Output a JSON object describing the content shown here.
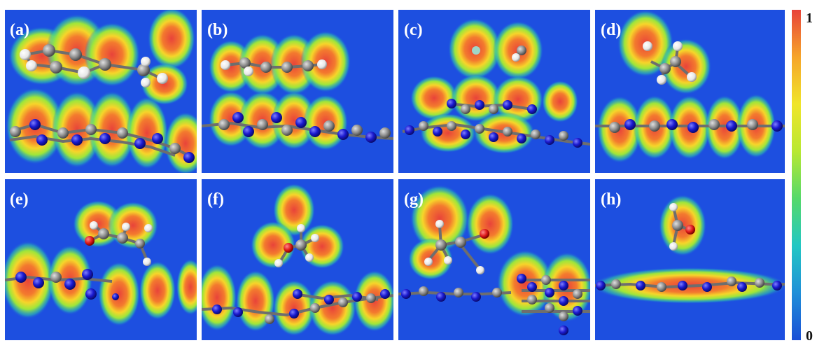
{
  "panels": [
    {
      "label": "(a)"
    },
    {
      "label": "(b)"
    },
    {
      "label": "(c)"
    },
    {
      "label": "(d)"
    },
    {
      "label": "(e)"
    },
    {
      "label": "(f)"
    },
    {
      "label": "(g)"
    },
    {
      "label": "(h)"
    }
  ],
  "colorbar": {
    "max_label": "1",
    "min_label": "0",
    "colors": [
      "#1a4fd6",
      "#1f8fd8",
      "#22c7c4",
      "#55d96a",
      "#b8e832",
      "#f0e52a",
      "#f6a52a",
      "#e8433a"
    ]
  },
  "palette": {
    "background": "#1d4fe0",
    "carbon": "#8c8c8c",
    "nitrogen": "#1a1ad0",
    "hydrogen": "#f2f2f2",
    "oxygen": "#dd1a1a"
  }
}
